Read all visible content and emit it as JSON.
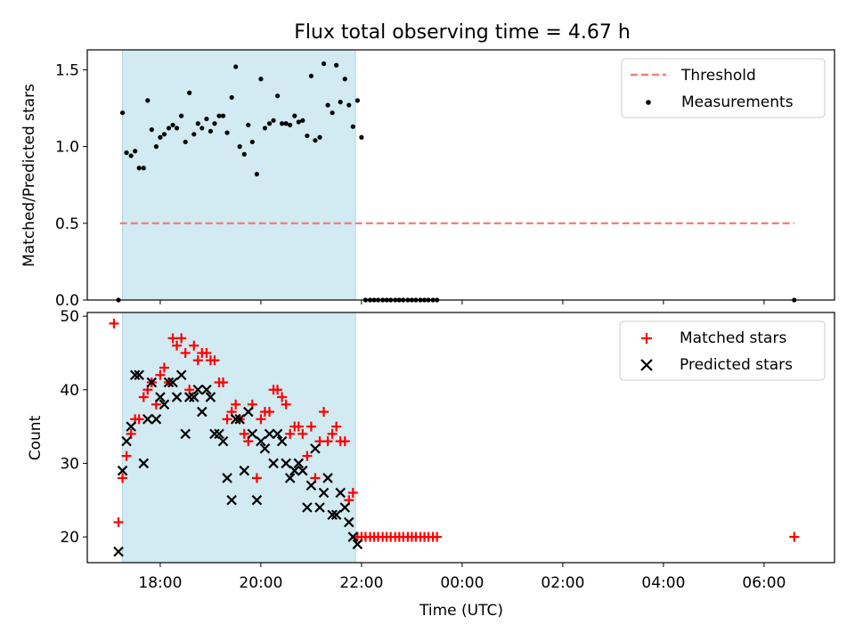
{
  "title": "Flux total observing time = 4.67 h",
  "chart_data": [
    {
      "type": "scatter",
      "title": "Flux total observing time = 4.67 h",
      "ylabel": "Matched/Predicted stars",
      "xlabel": "",
      "x_unit": "hours since 00:00 UTC of first night",
      "xlim": [
        16.55,
        31.4
      ],
      "ylim": [
        0,
        1.63
      ],
      "yticks": [
        0.0,
        0.5,
        1.0,
        1.5
      ],
      "ytick_labels": [
        "0.0",
        "0.5",
        "1.0",
        "1.5"
      ],
      "shaded_region": {
        "x0": 17.25,
        "x1": 21.88,
        "color": "#add8e6"
      },
      "legend_position": "upper-right",
      "legend": [
        {
          "label": "Threshold",
          "style": "dashed-line",
          "color": "#f08080"
        },
        {
          "label": "Measurements",
          "style": "dot",
          "color": "#000000"
        }
      ],
      "threshold": {
        "name": "Threshold",
        "y": 0.5,
        "x_range": [
          17.2,
          30.6
        ],
        "color": "#f08080"
      },
      "series": [
        {
          "name": "Measurements",
          "color": "#000000",
          "x": [
            17.17,
            17.25,
            17.33,
            17.42,
            17.5,
            17.58,
            17.67,
            17.75,
            17.83,
            17.92,
            18.0,
            18.08,
            18.17,
            18.25,
            18.33,
            18.42,
            18.5,
            18.58,
            18.67,
            18.75,
            18.83,
            18.92,
            19.0,
            19.08,
            19.17,
            19.25,
            19.33,
            19.42,
            19.5,
            19.58,
            19.67,
            19.75,
            19.83,
            19.92,
            20.0,
            20.08,
            20.17,
            20.25,
            20.33,
            20.42,
            20.5,
            20.58,
            20.67,
            20.75,
            20.83,
            20.92,
            21.0,
            21.08,
            21.17,
            21.25,
            21.33,
            21.42,
            21.5,
            21.58,
            21.67,
            21.75,
            21.83,
            21.92,
            22.0,
            22.08,
            22.17,
            22.25,
            22.33,
            22.42,
            22.5,
            22.58,
            22.67,
            22.75,
            22.83,
            22.92,
            23.0,
            23.08,
            23.17,
            23.25,
            23.33,
            23.42,
            23.5,
            30.6
          ],
          "y": [
            0.0,
            1.22,
            0.96,
            0.94,
            0.97,
            0.86,
            0.86,
            1.3,
            1.11,
            1.0,
            1.06,
            1.08,
            1.12,
            1.14,
            1.12,
            1.2,
            1.03,
            1.35,
            1.08,
            1.15,
            1.12,
            1.18,
            1.1,
            1.15,
            1.2,
            1.2,
            1.09,
            1.32,
            1.52,
            1.0,
            0.95,
            1.14,
            1.03,
            0.82,
            1.44,
            1.12,
            1.15,
            1.17,
            1.33,
            1.15,
            1.15,
            1.14,
            1.2,
            1.16,
            1.17,
            1.07,
            1.46,
            1.04,
            1.06,
            1.54,
            1.27,
            1.22,
            1.53,
            1.29,
            1.44,
            1.27,
            1.13,
            1.3,
            1.06,
            0.0,
            0.0,
            0.0,
            0.0,
            0.0,
            0.0,
            0.0,
            0.0,
            0.0,
            0.0,
            0.0,
            0.0,
            0.0,
            0.0,
            0.0,
            0.0,
            0.0,
            0.0,
            0.0
          ]
        }
      ]
    },
    {
      "type": "scatter",
      "title": "",
      "xlabel": "Time (UTC)",
      "ylabel": "Count",
      "x_unit": "hours since 00:00 UTC of first night",
      "xlim": [
        16.55,
        31.4
      ],
      "ylim": [
        16.5,
        50.5
      ],
      "yticks": [
        20,
        30,
        40,
        50
      ],
      "ytick_labels": [
        "20",
        "30",
        "40",
        "50"
      ],
      "xticks": [
        18,
        20,
        22,
        24,
        26,
        28,
        30
      ],
      "xtick_labels": [
        "18:00",
        "20:00",
        "22:00",
        "00:00",
        "02:00",
        "04:00",
        "06:00"
      ],
      "shaded_region": {
        "x0": 17.25,
        "x1": 21.88,
        "color": "#add8e6"
      },
      "legend_position": "upper-right",
      "legend": [
        {
          "label": "Matched stars",
          "marker": "plus",
          "color": "#ff0000"
        },
        {
          "label": "Predicted stars",
          "marker": "x",
          "color": "#000000"
        }
      ],
      "series": [
        {
          "name": "Matched stars",
          "marker": "plus",
          "color": "#ff0000",
          "x": [
            17.08,
            17.17,
            17.25,
            17.33,
            17.42,
            17.5,
            17.58,
            17.67,
            17.75,
            17.83,
            17.92,
            18.0,
            18.08,
            18.17,
            18.25,
            18.33,
            18.42,
            18.5,
            18.58,
            18.67,
            18.75,
            18.83,
            18.92,
            19.0,
            19.08,
            19.17,
            19.25,
            19.33,
            19.42,
            19.5,
            19.58,
            19.67,
            19.75,
            19.83,
            19.92,
            20.0,
            20.08,
            20.17,
            20.25,
            20.33,
            20.42,
            20.5,
            20.58,
            20.67,
            20.75,
            20.83,
            20.92,
            21.0,
            21.08,
            21.17,
            21.25,
            21.33,
            21.42,
            21.5,
            21.58,
            21.67,
            21.75,
            21.83,
            21.92,
            22.0,
            22.08,
            22.17,
            22.25,
            22.33,
            22.42,
            22.5,
            22.58,
            22.67,
            22.75,
            22.83,
            22.92,
            23.0,
            23.08,
            23.17,
            23.25,
            23.33,
            23.42,
            23.5,
            30.6
          ],
          "y": [
            49,
            22,
            28,
            31,
            34,
            36,
            36,
            39,
            40,
            41,
            38,
            42,
            43,
            41,
            47,
            46,
            47,
            45,
            40,
            46,
            44,
            45,
            45,
            44,
            44,
            41,
            41,
            36,
            37,
            38,
            36,
            34,
            33,
            38,
            28,
            36,
            37,
            37,
            40,
            40,
            39,
            38,
            34,
            35,
            35,
            34,
            31,
            35,
            28,
            33,
            37,
            33,
            34,
            35,
            33,
            33,
            25,
            26,
            20,
            20,
            20,
            20,
            20,
            20,
            20,
            20,
            20,
            20,
            20,
            20,
            20,
            20,
            20,
            20,
            20,
            20,
            20,
            20,
            20
          ]
        },
        {
          "name": "Predicted stars",
          "marker": "x",
          "color": "#000000",
          "x": [
            17.17,
            17.25,
            17.33,
            17.42,
            17.5,
            17.58,
            17.67,
            17.75,
            17.83,
            17.92,
            18.0,
            18.08,
            18.17,
            18.25,
            18.33,
            18.42,
            18.5,
            18.58,
            18.67,
            18.75,
            18.83,
            18.92,
            19.0,
            19.08,
            19.17,
            19.25,
            19.33,
            19.42,
            19.5,
            19.58,
            19.67,
            19.75,
            19.83,
            19.92,
            20.0,
            20.08,
            20.17,
            20.25,
            20.33,
            20.42,
            20.5,
            20.58,
            20.67,
            20.75,
            20.83,
            20.92,
            21.0,
            21.08,
            21.17,
            21.25,
            21.33,
            21.42,
            21.5,
            21.58,
            21.67,
            21.75,
            21.83,
            21.92
          ],
          "y": [
            18,
            29,
            33,
            35,
            42,
            42,
            30,
            36,
            41,
            36,
            39,
            38,
            41,
            41,
            39,
            42,
            34,
            39,
            39,
            40,
            37,
            40,
            39,
            34,
            34,
            33,
            28,
            25,
            36,
            36,
            29,
            37,
            34,
            25,
            33,
            32,
            34,
            30,
            34,
            33,
            30,
            28,
            29,
            30,
            29,
            24,
            27,
            32,
            24,
            26,
            28,
            23,
            23,
            26,
            24,
            22,
            20,
            19
          ]
        }
      ]
    }
  ]
}
